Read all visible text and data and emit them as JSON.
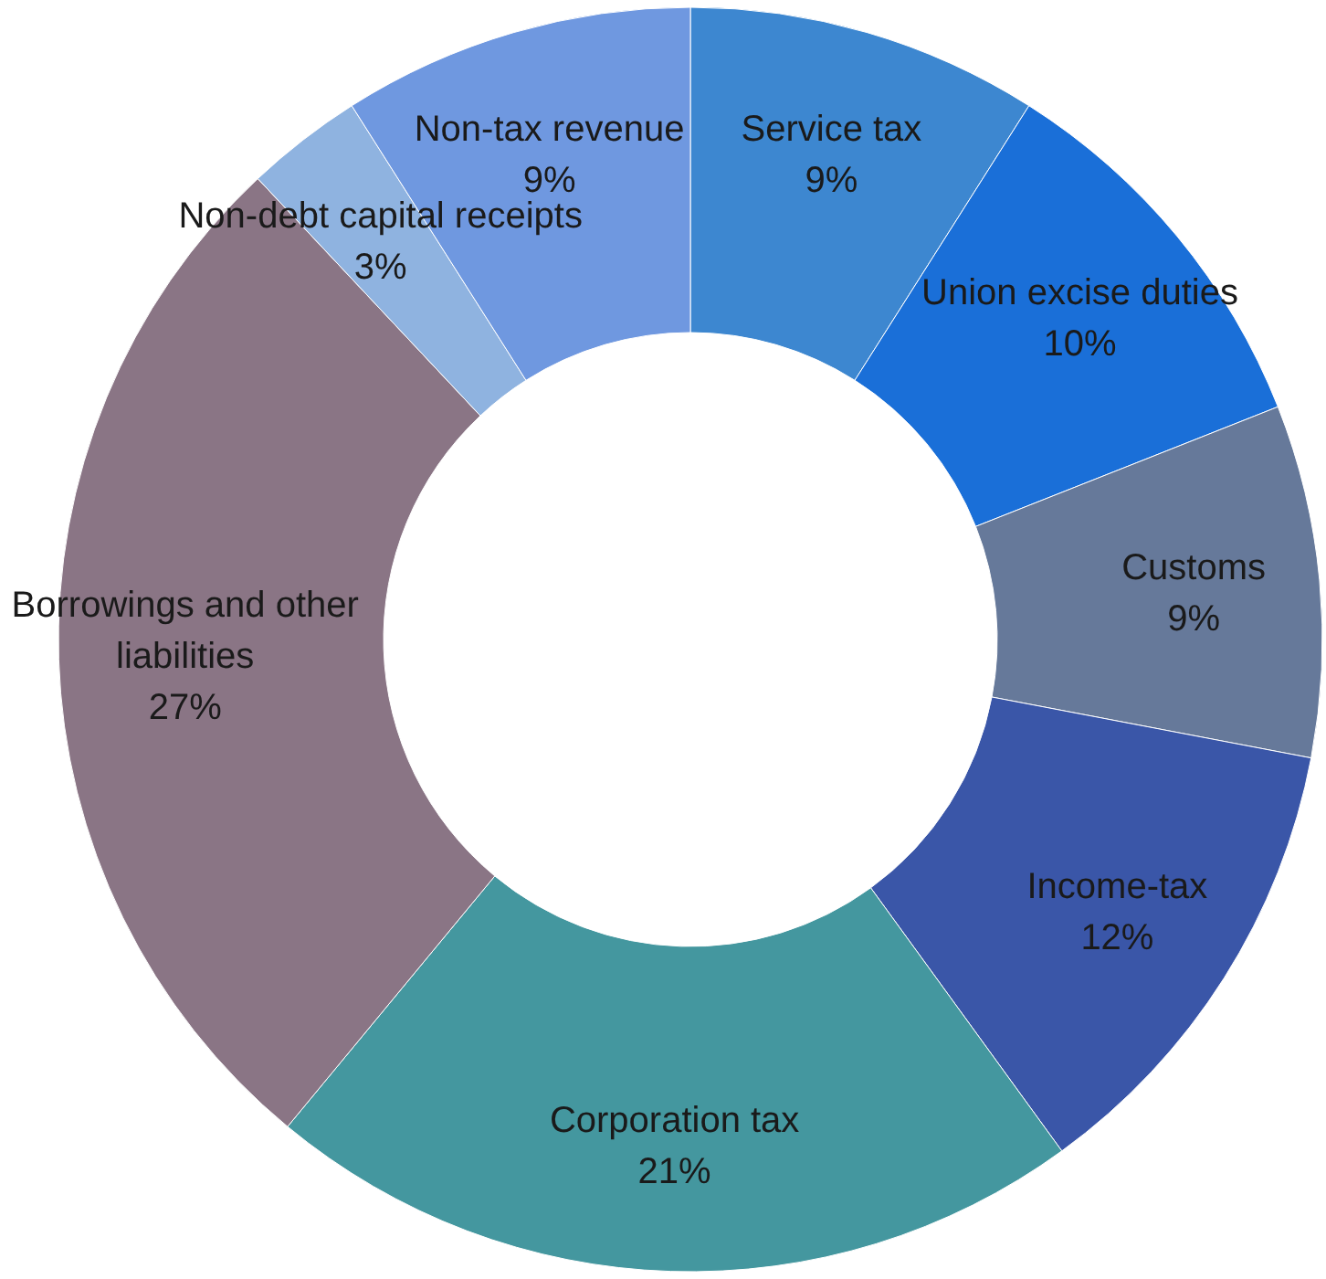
{
  "chart_data": {
    "type": "donut",
    "categories": [
      "Service tax",
      "Union excise duties",
      "Customs",
      "Income-tax",
      "Corporation tax",
      "Borrowings and other liabilities",
      "Non-debt capital receipts",
      "Non-tax revenue"
    ],
    "values": [
      9,
      10,
      9,
      12,
      21,
      27,
      3,
      9
    ],
    "value_labels": [
      "9%",
      "10%",
      "9%",
      "12%",
      "21%",
      "27%",
      "3%",
      "9%"
    ],
    "colors": [
      "#3d87d0",
      "#1a6fd8",
      "#66799a",
      "#3a56a8",
      "#44979f",
      "#8a7585",
      "#8fb3e0",
      "#6f98e0"
    ]
  }
}
